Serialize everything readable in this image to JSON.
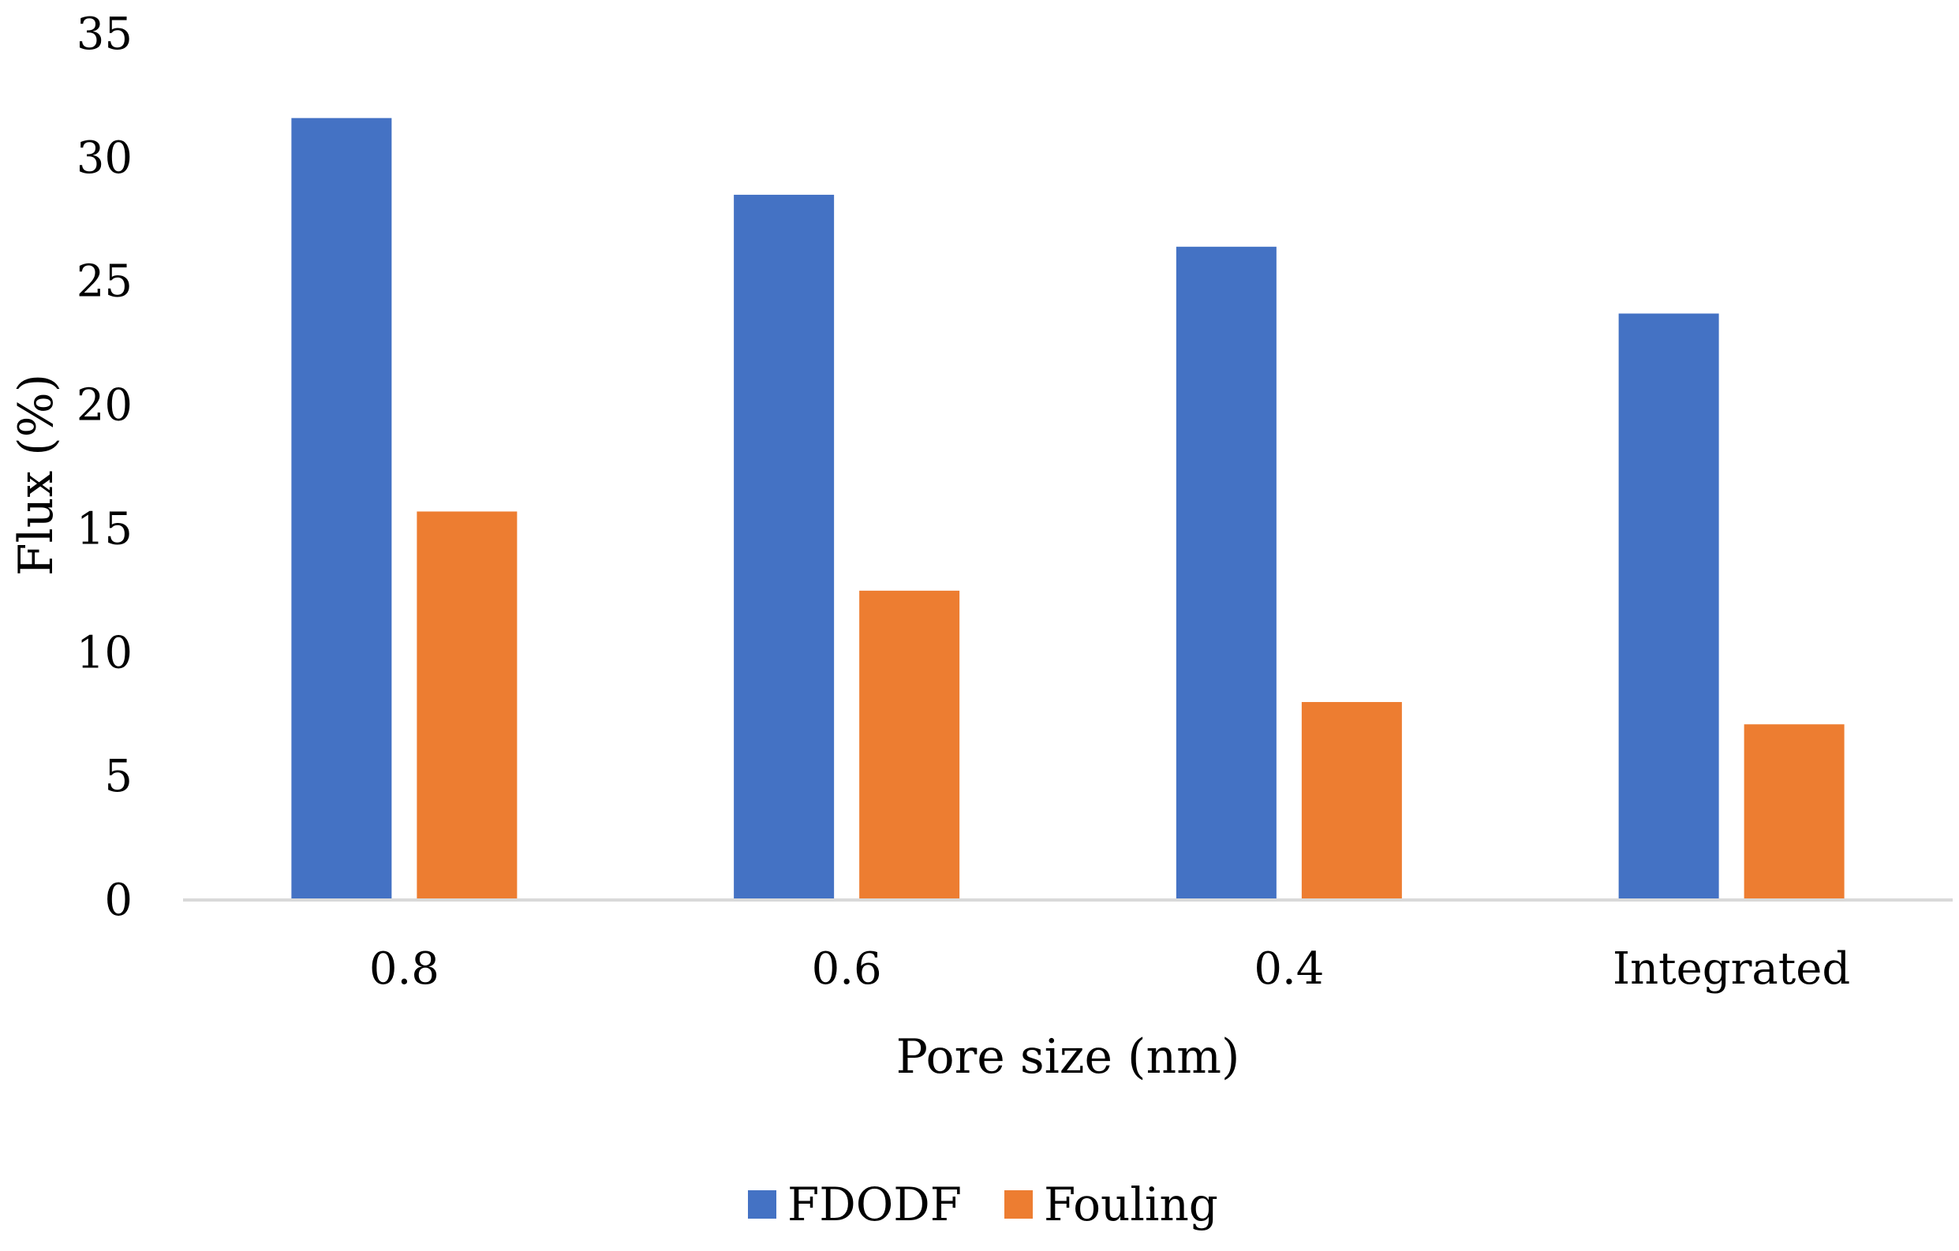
{
  "chart_data": {
    "type": "bar",
    "title": "",
    "xlabel": "Pore size (nm)",
    "ylabel": "Flux (%)",
    "categories": [
      "0.8",
      "0.6",
      "0.4",
      "Integrated"
    ],
    "series": [
      {
        "name": "FDODF",
        "color": "#4472C4",
        "values": [
          31.6,
          28.5,
          26.4,
          23.7
        ]
      },
      {
        "name": "Fouling",
        "color": "#ED7D31",
        "values": [
          15.7,
          12.5,
          8.0,
          7.1
        ]
      }
    ],
    "ylim": [
      0,
      35
    ],
    "yticks": [
      "0",
      "5",
      "10",
      "15",
      "20",
      "25",
      "30",
      "35"
    ],
    "grid": false,
    "legend_position": "bottom"
  }
}
